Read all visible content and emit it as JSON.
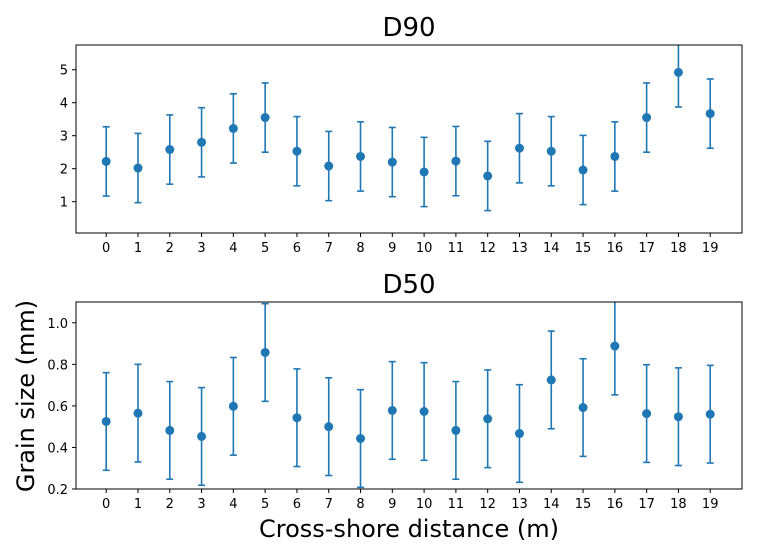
{
  "chart_data": [
    {
      "type": "scatter",
      "title": "D90",
      "xlabel": "",
      "ylabel": "",
      "x": [
        0,
        1,
        2,
        3,
        4,
        5,
        6,
        7,
        8,
        9,
        10,
        11,
        12,
        13,
        14,
        15,
        16,
        17,
        18,
        19
      ],
      "x_tick_labels": [
        "0",
        "1",
        "2",
        "3",
        "4",
        "5",
        "6",
        "7",
        "8",
        "9",
        "10",
        "11",
        "12",
        "13",
        "14",
        "15",
        "16",
        "17",
        "18",
        "19"
      ],
      "series": [
        {
          "values": [
            2.22,
            2.02,
            2.58,
            2.8,
            3.22,
            3.55,
            2.53,
            2.08,
            2.37,
            2.2,
            1.9,
            2.23,
            1.78,
            2.62,
            2.53,
            1.96,
            2.37,
            3.55,
            4.92,
            3.67
          ],
          "error": [
            1.05,
            1.05,
            1.05,
            1.05,
            1.05,
            1.05,
            1.05,
            1.05,
            1.05,
            1.05,
            1.05,
            1.05,
            1.05,
            1.05,
            1.05,
            1.05,
            1.05,
            1.05,
            1.05,
            1.05
          ]
        }
      ],
      "ylim": [
        0.05,
        5.75
      ],
      "xlim": [
        -0.95,
        20.0
      ],
      "y_ticks": [
        "1",
        "2",
        "3",
        "4",
        "5"
      ],
      "marker_color": "#1f77b4"
    },
    {
      "type": "scatter",
      "title": "D50",
      "xlabel": "Cross-shore distance (m)",
      "ylabel": "Grain size (mm)",
      "x": [
        0,
        1,
        2,
        3,
        4,
        5,
        6,
        7,
        8,
        9,
        10,
        11,
        12,
        13,
        14,
        15,
        16,
        17,
        18,
        19
      ],
      "x_tick_labels": [
        "0",
        "1",
        "2",
        "3",
        "4",
        "5",
        "6",
        "7",
        "8",
        "9",
        "10",
        "11",
        "12",
        "13",
        "14",
        "15",
        "16",
        "17",
        "18",
        "19"
      ],
      "series": [
        {
          "values": [
            0.525,
            0.565,
            0.482,
            0.453,
            0.598,
            0.857,
            0.543,
            0.5,
            0.443,
            0.578,
            0.573,
            0.482,
            0.538,
            0.467,
            0.725,
            0.592,
            0.888,
            0.563,
            0.548,
            0.56
          ],
          "error": [
            0.235,
            0.235,
            0.235,
            0.235,
            0.235,
            0.235,
            0.235,
            0.235,
            0.235,
            0.235,
            0.235,
            0.235,
            0.235,
            0.235,
            0.235,
            0.235,
            0.235,
            0.235,
            0.235,
            0.235
          ]
        }
      ],
      "ylim": [
        0.2,
        1.1
      ],
      "xlim": [
        -0.95,
        20.0
      ],
      "y_ticks": [
        "0.2",
        "0.4",
        "0.6",
        "0.8",
        "1.0"
      ],
      "marker_color": "#1f77b4"
    }
  ]
}
